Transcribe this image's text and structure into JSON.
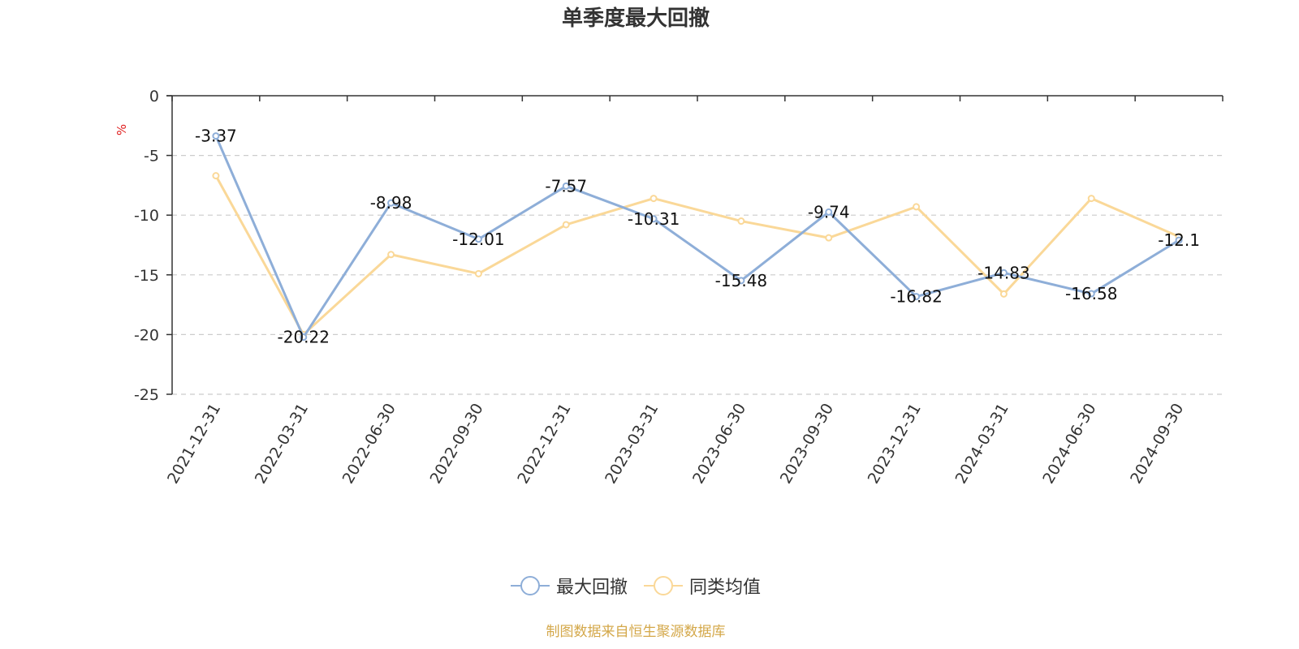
{
  "chart_data": {
    "type": "line",
    "title": "单季度最大回撤",
    "ylabel": "%",
    "ylim": [
      -25,
      0
    ],
    "yticks": [
      0,
      -5,
      -10,
      -15,
      -20,
      -25
    ],
    "grid": true,
    "legend_position": "bottom",
    "categories": [
      "2021-12-31",
      "2022-03-31",
      "2022-06-30",
      "2022-09-30",
      "2022-12-31",
      "2023-03-31",
      "2023-06-30",
      "2023-09-30",
      "2023-12-31",
      "2024-03-31",
      "2024-06-30",
      "2024-09-30"
    ],
    "series": [
      {
        "name": "最大回撤",
        "color": "#8eaed8",
        "show_labels": true,
        "values": [
          -3.37,
          -20.22,
          -8.98,
          -12.01,
          -7.57,
          -10.31,
          -15.48,
          -9.74,
          -16.82,
          -14.83,
          -16.58,
          -12.1
        ]
      },
      {
        "name": "同类均值",
        "color": "#fad898",
        "show_labels": false,
        "values": [
          -6.7,
          -20.0,
          -13.3,
          -14.9,
          -10.8,
          -8.6,
          -10.5,
          -11.9,
          -9.3,
          -16.6,
          -8.6,
          -11.8
        ]
      }
    ]
  },
  "footer": {
    "source": "制图数据来自恒生聚源数据库"
  }
}
